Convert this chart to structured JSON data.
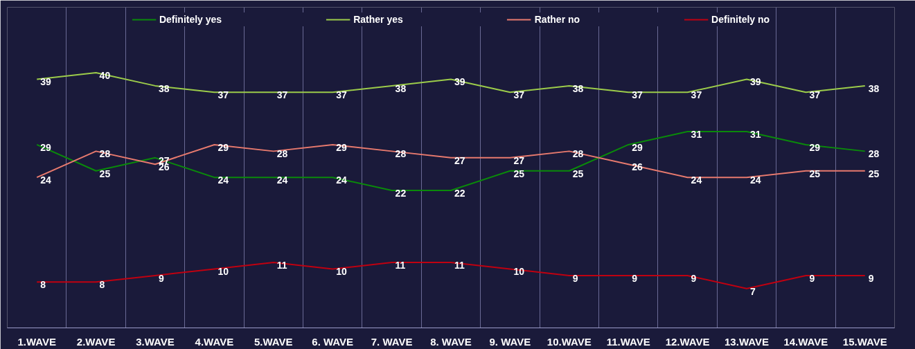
{
  "chart_data": {
    "type": "line",
    "categories": [
      "1.WAVE",
      "2.WAVE",
      "3.WAVE",
      "4.WAVE",
      "5.WAVE",
      "6. WAVE",
      "7. WAVE",
      "8. WAVE",
      "9. WAVE",
      "10.WAVE",
      "11.WAVE",
      "12.WAVE",
      "13.WAVE",
      "14.WAVE",
      "15.WAVE"
    ],
    "series": [
      {
        "name": "Definitely yes",
        "color": "#0a8a0a",
        "values": [
          29,
          25,
          27,
          24,
          24,
          24,
          22,
          22,
          25,
          25,
          29,
          31,
          31,
          29,
          28
        ]
      },
      {
        "name": "Rather yes",
        "color": "#9ccc4a",
        "values": [
          39,
          40,
          38,
          37,
          37,
          37,
          38,
          39,
          37,
          38,
          37,
          37,
          39,
          37,
          38
        ]
      },
      {
        "name": "Rather no",
        "color": "#e87a6e",
        "values": [
          24,
          28,
          26,
          29,
          28,
          29,
          28,
          27,
          27,
          28,
          26,
          24,
          24,
          25,
          25
        ]
      },
      {
        "name": "Definitely no",
        "color": "#c00010",
        "values": [
          8,
          8,
          9,
          10,
          11,
          10,
          11,
          11,
          10,
          9,
          9,
          9,
          7,
          9,
          9
        ]
      }
    ],
    "ylim": [
      1,
      50
    ],
    "tick_labels": "x",
    "grid": "x",
    "legend": "top",
    "data_labels": true,
    "marker": "none",
    "line_style": "solid"
  }
}
